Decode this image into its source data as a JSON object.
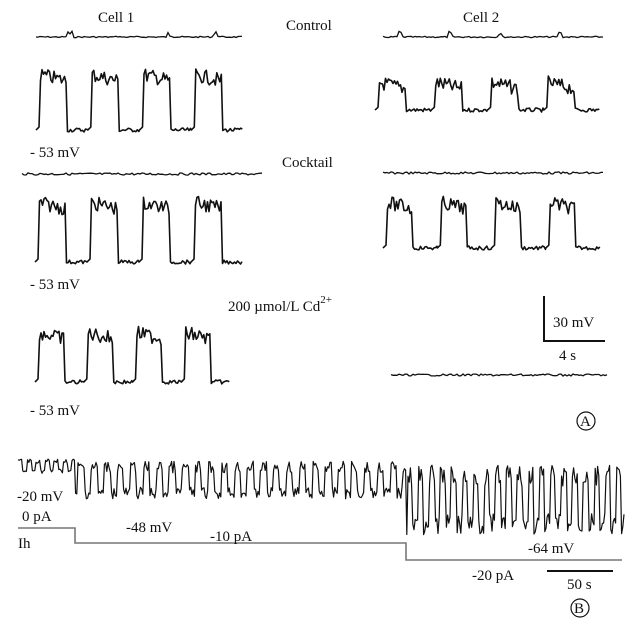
{
  "panel_a": {
    "cell1_label": "Cell 1",
    "cell2_label": "Cell 2",
    "control_label": "Control",
    "cocktail_label": "Cocktail",
    "cd_label": "200 µmol/L  Cd",
    "cd_sup": "2+",
    "vm_label_1": "- 53 mV",
    "vm_label_2": "- 53 mV",
    "vm_label_3": "- 53 mV",
    "scale_v": "30 mV",
    "scale_t": "4 s",
    "panel_letter": "A"
  },
  "panel_b": {
    "v1": "-20 mV",
    "i1": "0 pA",
    "ih": "Ih",
    "v2": "-48 mV",
    "i2": "-10 pA",
    "v3": "-64 mV",
    "i3": "-20 pA",
    "scale_t": "50 s",
    "panel_letter": "B"
  },
  "chart_data": {
    "type": "line",
    "panel_a": {
      "conditions": [
        "Control",
        "Cocktail",
        "200 µmol/L Cd2+"
      ],
      "cells": [
        "Cell 1",
        "Cell 2"
      ],
      "oscillation_cycles_shown": 4,
      "trough_potential_mV": -53,
      "oscillation_amplitude_mV": 30,
      "cycle_period_s": 4,
      "scale_bar": {
        "voltage_mV": 30,
        "time_s": 4
      }
    },
    "panel_b": {
      "holding_currents_pA": [
        0,
        -10,
        -20
      ],
      "membrane_potentials_mV": [
        -20,
        -48,
        -64
      ],
      "scale_bar_time_s": 50
    }
  }
}
